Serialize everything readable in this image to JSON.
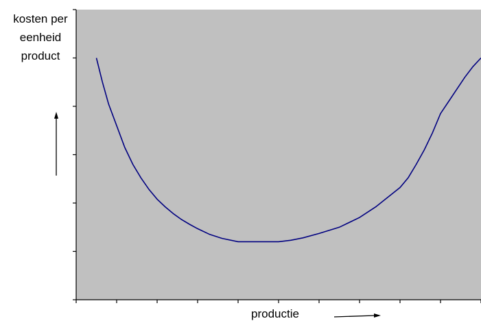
{
  "chart_data": {
    "type": "line",
    "title": "",
    "ylabel_lines": [
      "kosten per",
      "eenheid",
      "product"
    ],
    "xlabel": "productie",
    "xlim": [
      0,
      10
    ],
    "ylim": [
      0,
      6
    ],
    "x_tick_count": 11,
    "y_tick_count": 7,
    "x_tick_labels": [],
    "y_tick_labels": [],
    "grid": false,
    "legend": "none",
    "series": [
      {
        "color": "#000080",
        "x": [
          0.5,
          0.65,
          0.8,
          1.0,
          1.2,
          1.4,
          1.6,
          1.8,
          2.0,
          2.2,
          2.4,
          2.6,
          2.8,
          3.0,
          3.3,
          3.6,
          4.0,
          4.5,
          5.0,
          5.3,
          5.6,
          6.0,
          6.5,
          7.0,
          7.4,
          7.7,
          8.0,
          8.2,
          8.4,
          8.6,
          8.8,
          9.0,
          9.2,
          9.4,
          9.6,
          9.8,
          10.0
        ],
        "y": [
          5.0,
          4.5,
          4.05,
          3.6,
          3.15,
          2.8,
          2.52,
          2.28,
          2.08,
          1.92,
          1.78,
          1.66,
          1.56,
          1.47,
          1.35,
          1.27,
          1.2,
          1.2,
          1.2,
          1.23,
          1.28,
          1.37,
          1.5,
          1.7,
          1.92,
          2.12,
          2.32,
          2.52,
          2.8,
          3.1,
          3.45,
          3.85,
          4.1,
          4.35,
          4.6,
          4.82,
          5.0
        ]
      }
    ]
  },
  "colors": {
    "plot_area": "#c0c0c0",
    "axis": "#000000",
    "line": "#000080"
  }
}
